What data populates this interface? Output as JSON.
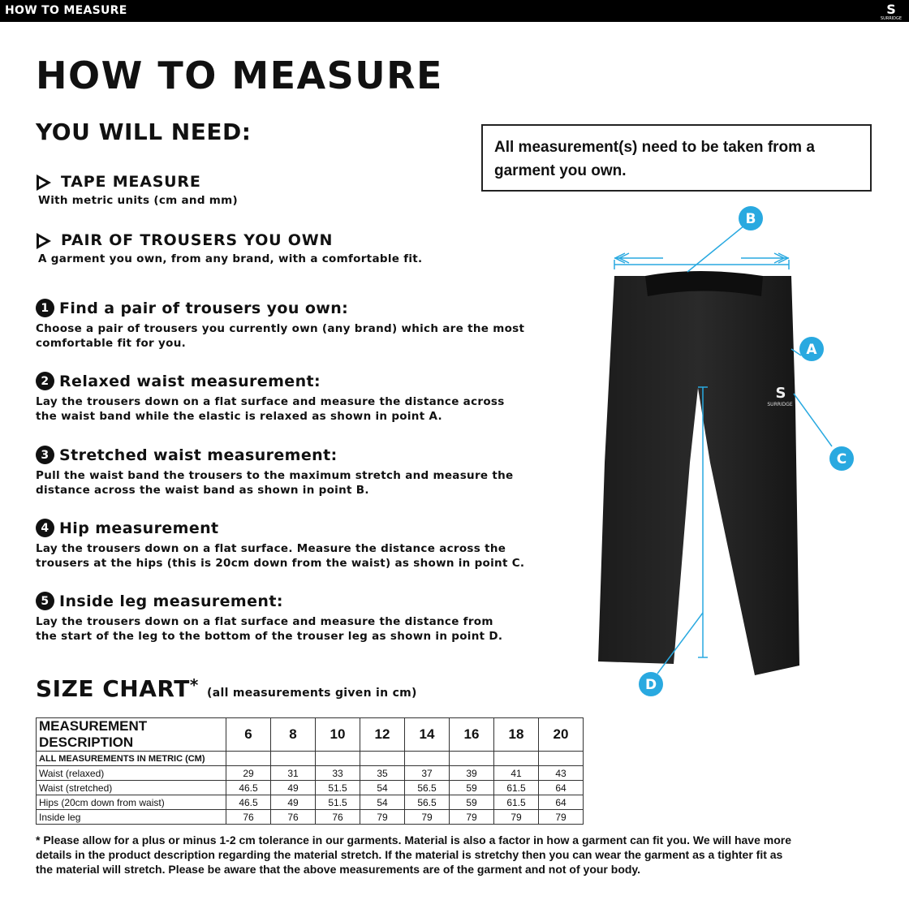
{
  "topbar": {
    "title": "HOW TO MEASURE",
    "logo_text": "SURRIDGE"
  },
  "title": "HOW TO MEASURE",
  "you_will_need": {
    "heading": "YOU WILL NEED:",
    "items": [
      {
        "title": "TAPE MEASURE",
        "desc": "With metric units (cm and mm)"
      },
      {
        "title": "PAIR OF TROUSERS YOU OWN",
        "desc": "A garment you own, from any brand, with a comfortable fit."
      }
    ]
  },
  "note": "All measurement(s) need to be taken from a garment you own.",
  "steps": [
    {
      "num": "1",
      "title": "Find a pair of trousers you own:",
      "l1": "Choose a pair of trousers you currently own (any brand) which are the most",
      "l2": "comfortable fit for you."
    },
    {
      "num": "2",
      "title": "Relaxed waist measurement:",
      "l1": "Lay the trousers down on a flat surface and measure the distance across",
      "l2": "the waist band while the elastic is relaxed as shown in point A."
    },
    {
      "num": "3",
      "title": "Stretched waist measurement:",
      "l1": "Pull the waist band the trousers to the maximum stretch and measure the",
      "l2": "distance across the waist band as shown in point B."
    },
    {
      "num": "4",
      "title": "Hip measurement",
      "l1": "Lay the trousers down on a flat surface. Measure the distance across the",
      "l2": "trousers at the hips (this is 20cm down from the waist) as shown in point C."
    },
    {
      "num": "5",
      "title": "Inside leg measurement:",
      "l1": "Lay the trousers down on a flat surface and measure the distance from",
      "l2": "the start of the leg to the bottom of the trouser leg as shown in point D."
    }
  ],
  "diagram": {
    "labels": [
      "A",
      "B",
      "C",
      "D"
    ],
    "garment_logo": "SURRIDGE",
    "accent": "#29a9e0"
  },
  "size_chart": {
    "title": "SIZE CHART",
    "asterisk": "*",
    "subtitle": "(all measurements given in cm)",
    "header": [
      "MEASUREMENT DESCRIPTION",
      "6",
      "8",
      "10",
      "12",
      "14",
      "16",
      "18",
      "20"
    ],
    "metric_row": "ALL MEASUREMENTS IN METRIC (CM)",
    "rows": [
      [
        "Waist (relaxed)",
        "29",
        "31",
        "33",
        "35",
        "37",
        "39",
        "41",
        "43"
      ],
      [
        "Waist (stretched)",
        "46.5",
        "49",
        "51.5",
        "54",
        "56.5",
        "59",
        "61.5",
        "64"
      ],
      [
        "Hips (20cm down from waist)",
        "46.5",
        "49",
        "51.5",
        "54",
        "56.5",
        "59",
        "61.5",
        "64"
      ],
      [
        "Inside leg",
        "76",
        "76",
        "76",
        "79",
        "79",
        "79",
        "79",
        "79"
      ]
    ]
  },
  "footnote": "* Please allow for a plus or minus 1-2 cm tolerance in our garments. Material is also a factor in how a garment can fit you. We will have more details in the product description regarding the material stretch.  If the material is stretchy then you can wear the garment as a tighter fit as the material will stretch.  Please be aware that the above measurements are of the garment and not of your body."
}
